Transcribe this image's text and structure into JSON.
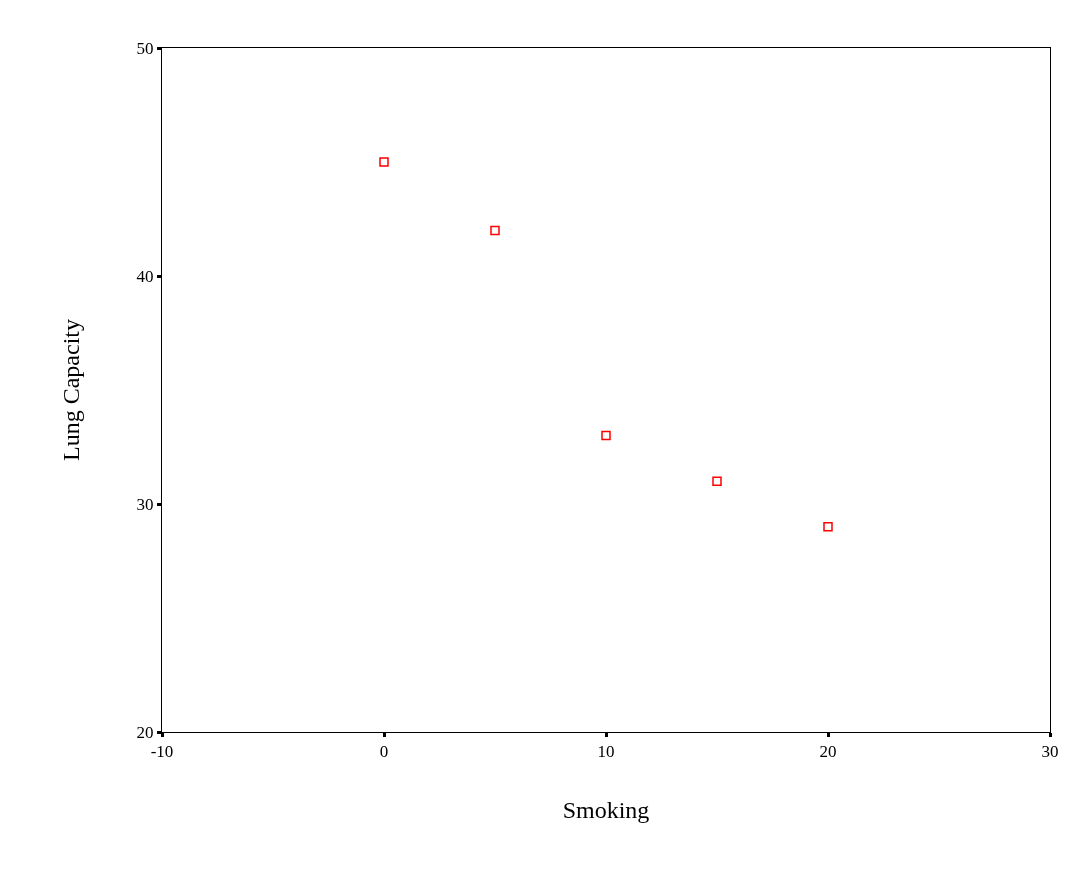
{
  "chart_data": {
    "type": "scatter",
    "xlabel": "Smoking",
    "ylabel": "Lung Capacity",
    "x": [
      0,
      5,
      10,
      15,
      20
    ],
    "series": [
      {
        "color": "#ff0000",
        "values": [
          45,
          42,
          33,
          31,
          29
        ]
      }
    ],
    "marker": "square",
    "xlim": [
      -10,
      30
    ],
    "xticks": [
      -10,
      0,
      10,
      20,
      30
    ],
    "ylim": [
      20,
      50
    ],
    "yticks": [
      20,
      30,
      40,
      50
    ],
    "grid": false
  }
}
